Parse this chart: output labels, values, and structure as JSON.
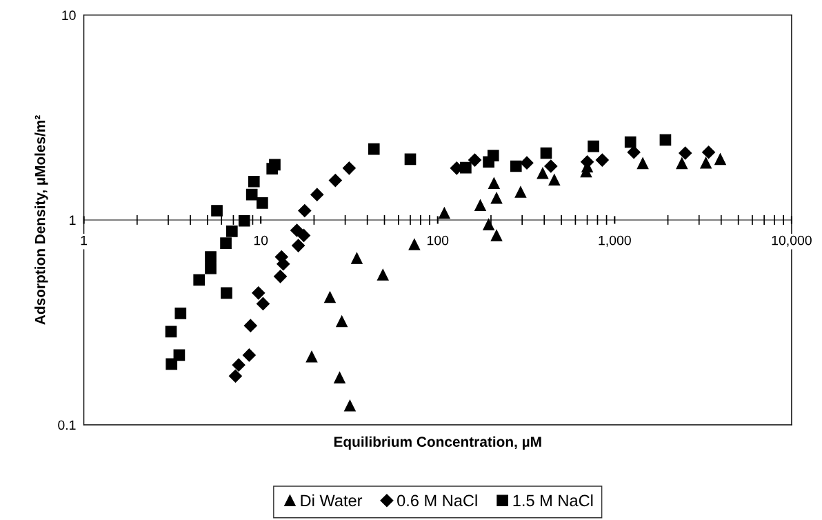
{
  "chart_data": {
    "type": "scatter",
    "xlabel": "Equilibrium Concentration, µM",
    "ylabel": "Adsorption Density, µMoles/m²",
    "log": "xy",
    "xlim": [
      1,
      10000
    ],
    "ylim": [
      0.1,
      10
    ],
    "xticks": [
      1,
      10,
      100,
      {
        "value": 1000,
        "label": "1,000"
      },
      {
        "value": 10000,
        "label": "10,000"
      }
    ],
    "yticks": [
      0.1,
      1,
      10
    ],
    "grid": false,
    "legend": "bottom",
    "series": [
      {
        "name": "Di Water",
        "color": "#000000",
        "marker": "triangle",
        "x": [
          19.4,
          24.6,
          28.7,
          27.9,
          31.9,
          34.9,
          49,
          73.8,
          109,
          174,
          194,
          215,
          208,
          215,
          294,
          392,
          456,
          690,
          700,
          1442,
          2399,
          3278,
          3953
        ],
        "values": [
          0.215,
          0.42,
          0.32,
          0.17,
          0.124,
          0.65,
          0.54,
          0.76,
          1.08,
          1.18,
          0.95,
          0.84,
          1.51,
          1.28,
          1.37,
          1.69,
          1.57,
          1.72,
          1.82,
          1.89,
          1.89,
          1.9,
          1.98
        ]
      },
      {
        "name": "0.6 M NaCl",
        "color": "#000000",
        "marker": "diamond",
        "x": [
          7.19,
          7.5,
          8.6,
          8.75,
          9.7,
          10.3,
          12.9,
          13.1,
          13.4,
          16.3,
          16.0,
          17.5,
          17.7,
          20.8,
          26.4,
          31.6,
          128,
          162,
          319,
          436,
          700,
          851,
          1284,
          2507,
          3396
        ],
        "values": [
          0.173,
          0.196,
          0.219,
          0.305,
          0.44,
          0.39,
          0.53,
          0.66,
          0.61,
          0.75,
          0.89,
          0.84,
          1.11,
          1.33,
          1.56,
          1.79,
          1.79,
          1.96,
          1.9,
          1.83,
          1.92,
          1.96,
          2.14,
          2.12,
          2.14
        ]
      },
      {
        "name": "1.5 M NaCl",
        "color": "#000000",
        "marker": "square",
        "x": [
          3.13,
          3.46,
          3.11,
          3.52,
          4.48,
          5.21,
          5.21,
          6.4,
          6.35,
          6.87,
          8.07,
          5.65,
          10.2,
          8.9,
          9.15,
          11.6,
          12.0,
          43.6,
          70,
          144,
          194,
          206,
          277,
          410,
          759,
          1228,
          1936
        ],
        "values": [
          0.198,
          0.219,
          0.285,
          0.35,
          0.51,
          0.58,
          0.66,
          0.44,
          0.77,
          0.88,
          0.99,
          1.11,
          1.21,
          1.33,
          1.54,
          1.78,
          1.86,
          2.22,
          1.98,
          1.8,
          1.92,
          2.06,
          1.83,
          2.12,
          2.29,
          2.4,
          2.46
        ]
      }
    ]
  }
}
